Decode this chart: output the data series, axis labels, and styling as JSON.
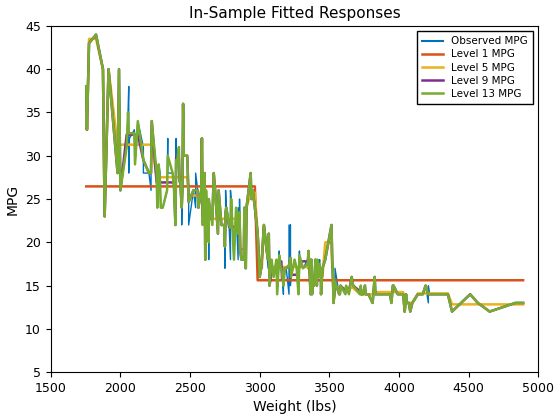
{
  "title": "In-Sample Fitted Responses",
  "xlabel": "Weight (lbs)",
  "ylabel": "MPG",
  "xlim": [
    1500,
    5000
  ],
  "ylim": [
    5,
    45
  ],
  "xticks": [
    1500,
    2000,
    2500,
    3000,
    3500,
    4000,
    4500,
    5000
  ],
  "yticks": [
    5,
    10,
    15,
    20,
    25,
    30,
    35,
    40,
    45
  ],
  "line_colors": {
    "observed": "#0072BD",
    "level1": "#D95319",
    "level5": "#EDB120",
    "level9": "#7E2F8E",
    "level13": "#77AC30"
  },
  "legend_labels": [
    "Observed MPG",
    "Level 1 MPG",
    "Level 5 MPG",
    "Level 9 MPG",
    "Level 13 MPG"
  ],
  "background_color": "#ffffff",
  "figsize": [
    5.6,
    4.2
  ],
  "dpi": 100
}
